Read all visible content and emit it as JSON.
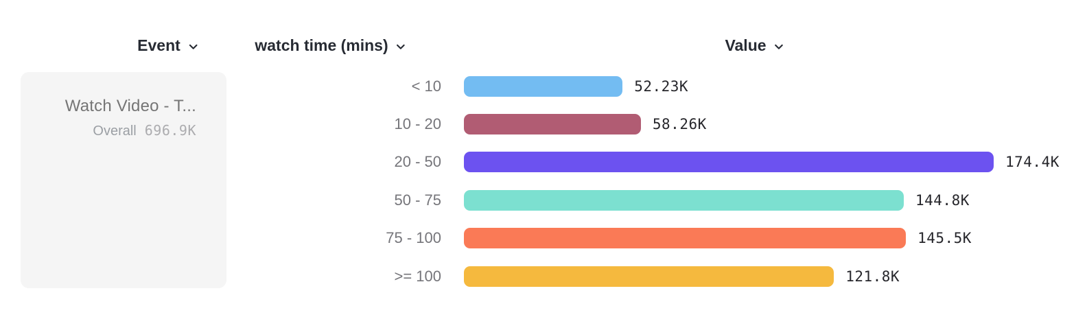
{
  "header": {
    "columns": [
      {
        "label": "Event",
        "icon": "chevron-down-icon"
      },
      {
        "label": "watch time (mins)",
        "icon": "chevron-down-icon"
      },
      {
        "label": "Value",
        "icon": "chevron-down-icon"
      }
    ]
  },
  "event_panel": {
    "name": "Watch Video - T...",
    "overall_label": "Overall",
    "overall_value": "696.9K"
  },
  "chart_data": {
    "type": "bar",
    "orientation": "horizontal",
    "title": "",
    "xlabel": "Value",
    "ylabel": "watch time (mins)",
    "categories": [
      "< 10",
      "10 - 20",
      "20 - 50",
      "50 - 75",
      "75 - 100",
      ">= 100"
    ],
    "values": [
      52230,
      58260,
      174400,
      144800,
      145500,
      121800
    ],
    "value_labels": [
      "52.23K",
      "58.26K",
      "174.4K",
      "144.8K",
      "145.5K",
      "121.8K"
    ],
    "bar_colors": [
      "#73BCF2",
      "#B15C73",
      "#6C52F0",
      "#7CE0D0",
      "#FA7A56",
      "#F5B93E"
    ],
    "xlim": [
      0,
      174400
    ],
    "grid": false,
    "legend": "none"
  },
  "colors": {
    "header_text": "#272B33",
    "category_text": "#75757A",
    "value_text": "#26262B",
    "panel_bg": "#F5F5F5",
    "event_name_text": "#757575",
    "overall_text": "#9B9FA4",
    "overall_value_text": "#ACACAF"
  }
}
